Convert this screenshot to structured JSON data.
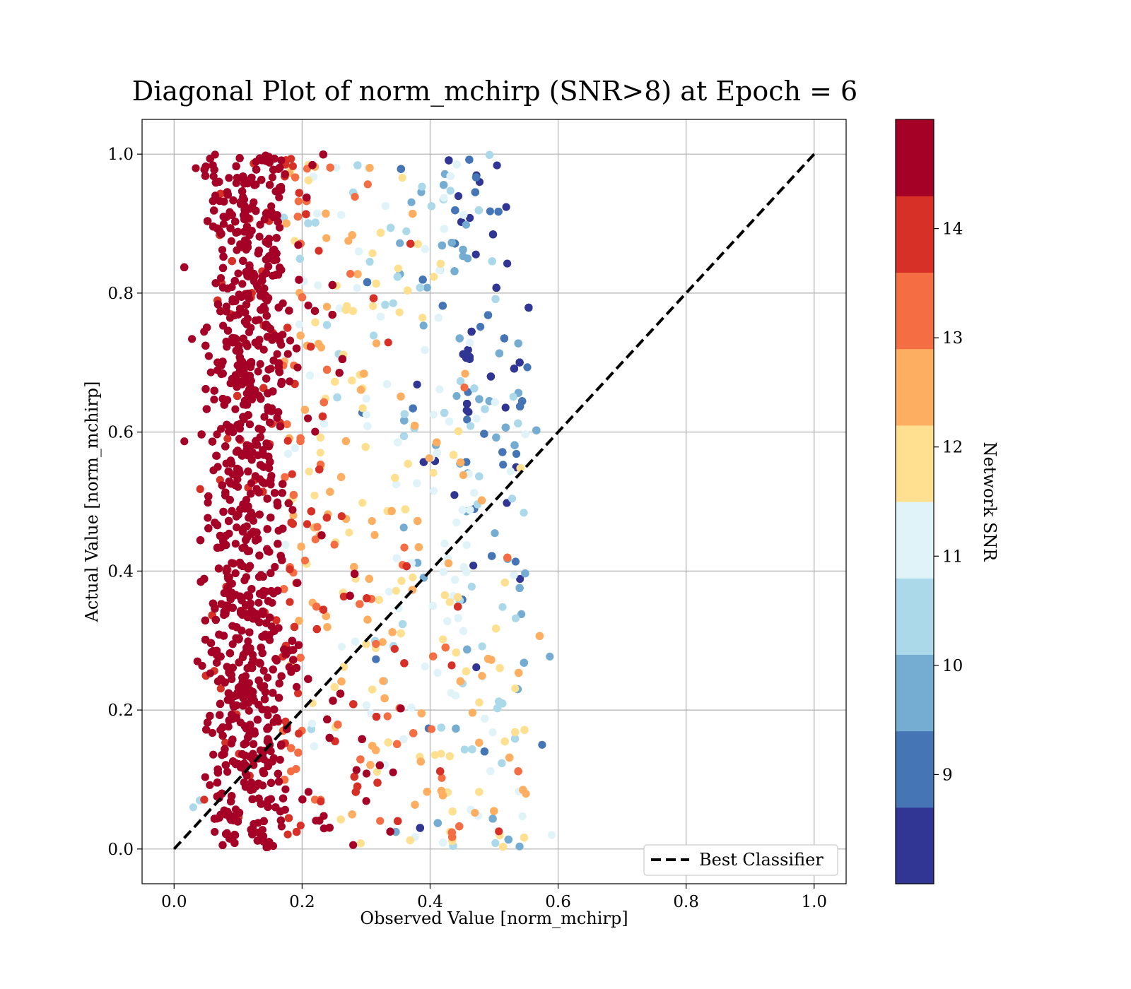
{
  "chart_data": {
    "type": "scatter",
    "title": "Diagonal Plot of norm_mchirp (SNR>8) at Epoch = 6",
    "xlabel": "Observed Value [norm_mchirp]",
    "ylabel": "Actual Value [norm_mchirp]",
    "xlim": [
      -0.05,
      1.05
    ],
    "ylim": [
      -0.05,
      1.05
    ],
    "x_ticks": [
      "0.0",
      "0.2",
      "0.4",
      "0.6",
      "0.8",
      "1.0"
    ],
    "y_ticks": [
      "0.0",
      "0.2",
      "0.4",
      "0.6",
      "0.8",
      "1.0"
    ],
    "grid": true,
    "reference_line": {
      "name": "Best Classifier",
      "x": [
        0.0,
        1.0
      ],
      "y": [
        0.0,
        1.0
      ],
      "style": "dashed",
      "color": "#000000"
    },
    "legend": {
      "placement": "lower-right",
      "entries": [
        "Best Classifier"
      ]
    },
    "colorbar": {
      "label": "Network SNR",
      "range": [
        8.0,
        15.0
      ],
      "ticks": [
        "9",
        "10",
        "11",
        "12",
        "13",
        "14"
      ],
      "levels": 10,
      "colors": [
        "#313695",
        "#4575b4",
        "#74add1",
        "#abd9e9",
        "#e0f3f8",
        "#fee090",
        "#fdae61",
        "#f46d43",
        "#d73027",
        "#a50026"
      ]
    },
    "point_trend": {
      "x_range": [
        0.04,
        0.59
      ],
      "y_range": [
        0.0,
        1.0
      ],
      "dense_high_snr_band_x": [
        0.05,
        0.25
      ],
      "low_snr_region_x": [
        0.3,
        0.57
      ]
    }
  }
}
